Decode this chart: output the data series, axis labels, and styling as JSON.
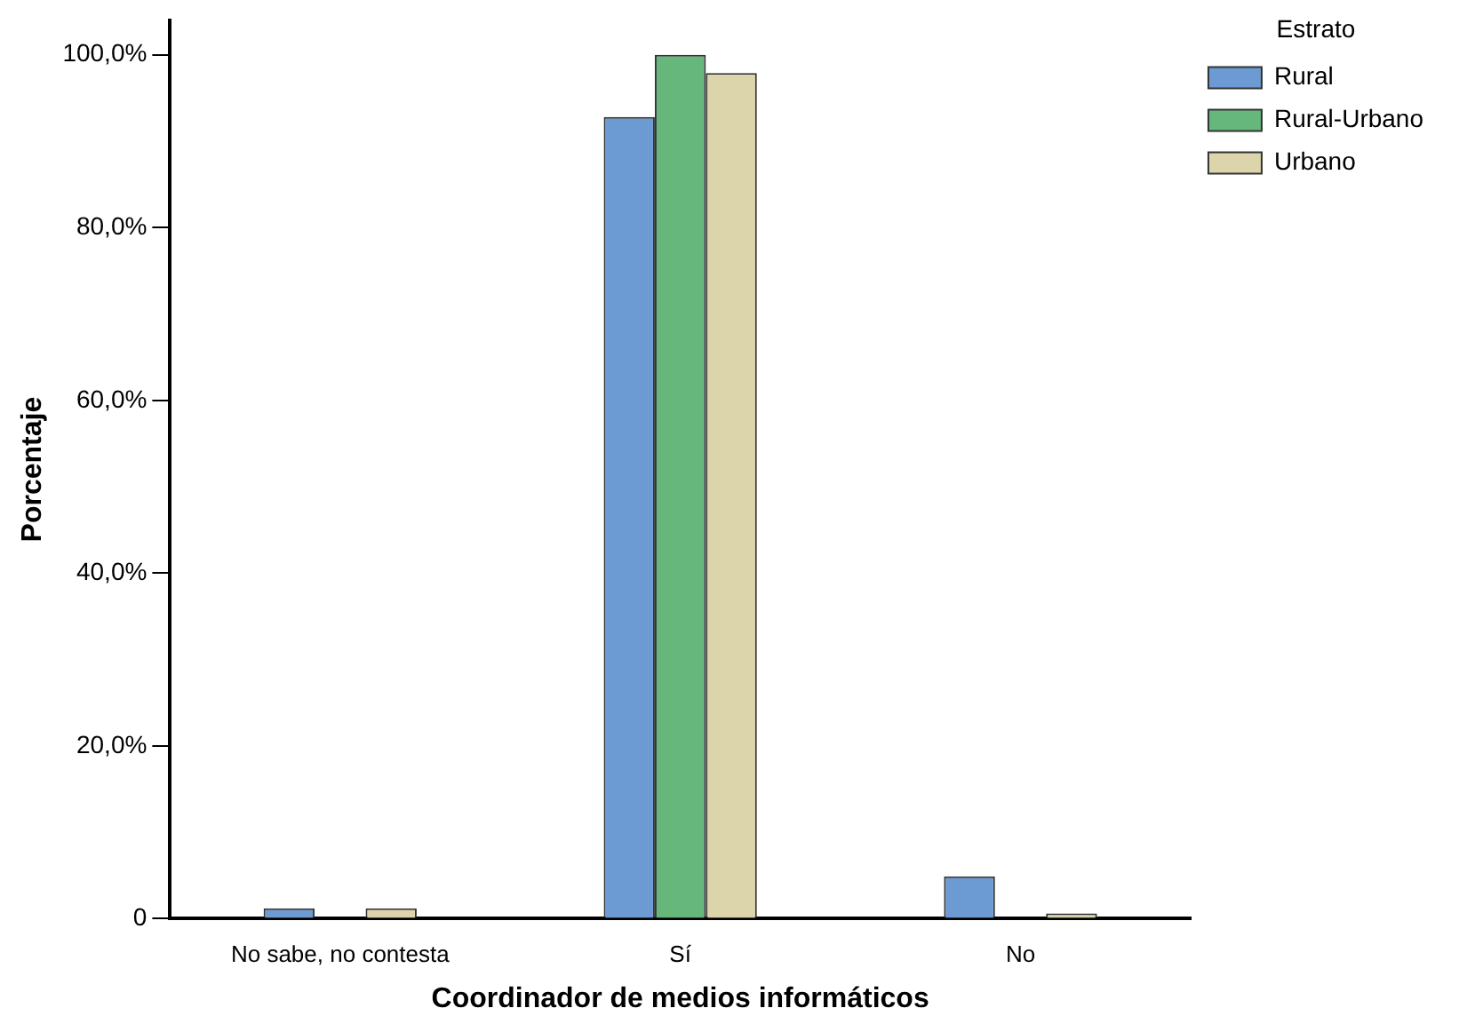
{
  "chart_data": {
    "type": "bar",
    "xlabel": "Coordinador de medios informáticos",
    "ylabel": "Porcentaje",
    "legend_title": "Estrato",
    "legend": "top right",
    "grid": false,
    "categories": [
      "No sabe, no contesta",
      "Sí",
      "No"
    ],
    "series": [
      {
        "name": "Rural",
        "color": "#6b9bd2",
        "values": [
          1.2,
          92.8,
          4.9
        ]
      },
      {
        "name": "Rural-Urbano",
        "color": "#66b77b",
        "values": [
          0,
          100,
          0
        ]
      },
      {
        "name": "Urbano",
        "color": "#dcd5ab",
        "values": [
          1.2,
          97.9,
          0.6
        ]
      }
    ],
    "ylim": [
      0,
      104
    ],
    "yticks": [
      {
        "value": 0,
        "label": "0"
      },
      {
        "value": 20,
        "label": "20,0%"
      },
      {
        "value": 40,
        "label": "40,0%"
      },
      {
        "value": 60,
        "label": "60,0%"
      },
      {
        "value": 80,
        "label": "80,0%"
      },
      {
        "value": 100,
        "label": "100,0%"
      }
    ]
  }
}
